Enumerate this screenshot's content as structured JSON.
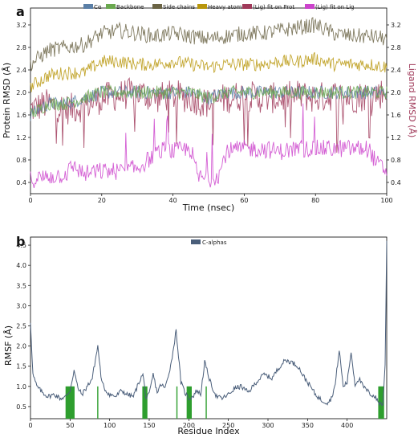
{
  "chart_data": [
    {
      "panel_label": "a",
      "type": "line",
      "xlabel": "Time (nsec)",
      "ylabel": "Protein RMSD (Å)",
      "ylabel_right": "Ligand RMSD (Å)",
      "xlim": [
        0,
        100
      ],
      "ylim": [
        0.2,
        3.5
      ],
      "x_ticks": [
        0,
        20,
        40,
        60,
        80,
        100
      ],
      "y_ticks": [
        0.4,
        0.8,
        1.2,
        1.6,
        2.0,
        2.4,
        2.8,
        3.2
      ],
      "legend_position": "top",
      "series": [
        {
          "name": "Cα",
          "color": "#5b7fa6",
          "axis": "left",
          "x": [
            0,
            5,
            10,
            15,
            20,
            25,
            30,
            35,
            40,
            45,
            50,
            55,
            60,
            65,
            70,
            75,
            80,
            85,
            90,
            95,
            100
          ],
          "y": [
            1.6,
            1.8,
            1.8,
            1.9,
            2.0,
            2.0,
            2.0,
            2.0,
            2.0,
            2.0,
            1.9,
            2.0,
            2.0,
            2.0,
            2.0,
            2.0,
            2.0,
            2.0,
            2.0,
            2.0,
            2.0
          ]
        },
        {
          "name": "Backbone",
          "color": "#6aa84f",
          "axis": "left",
          "x": [
            0,
            5,
            10,
            15,
            20,
            25,
            30,
            35,
            40,
            45,
            50,
            55,
            60,
            65,
            70,
            75,
            80,
            85,
            90,
            95,
            100
          ],
          "y": [
            1.6,
            1.8,
            1.8,
            1.9,
            2.0,
            2.0,
            2.0,
            2.0,
            2.0,
            2.0,
            1.9,
            2.0,
            2.0,
            2.0,
            2.0,
            2.0,
            2.0,
            2.0,
            2.0,
            2.0,
            2.0
          ]
        },
        {
          "name": "Side chains",
          "color": "#6b6445",
          "axis": "left",
          "x": [
            0,
            5,
            10,
            15,
            20,
            25,
            30,
            35,
            40,
            45,
            50,
            55,
            60,
            65,
            70,
            75,
            80,
            85,
            90,
            95,
            100
          ],
          "y": [
            2.5,
            2.75,
            2.8,
            2.85,
            3.05,
            3.1,
            3.05,
            3.0,
            3.05,
            3.0,
            2.95,
            3.0,
            3.05,
            3.05,
            3.1,
            3.15,
            3.2,
            3.05,
            3.0,
            3.0,
            2.95
          ]
        },
        {
          "name": "Heavy atoms",
          "color": "#b8960c",
          "axis": "left",
          "x": [
            0,
            5,
            10,
            15,
            20,
            25,
            30,
            35,
            40,
            45,
            50,
            55,
            60,
            65,
            70,
            75,
            80,
            85,
            90,
            95,
            100
          ],
          "y": [
            2.1,
            2.3,
            2.35,
            2.35,
            2.55,
            2.55,
            2.5,
            2.5,
            2.55,
            2.5,
            2.45,
            2.5,
            2.5,
            2.5,
            2.55,
            2.55,
            2.6,
            2.5,
            2.5,
            2.5,
            2.45
          ]
        },
        {
          "name": "(Lig) fit on Prot",
          "color": "#a03a5a",
          "axis": "right",
          "x": [
            0,
            5,
            10,
            15,
            20,
            25,
            30,
            35,
            40,
            45,
            50,
            55,
            60,
            65,
            70,
            75,
            80,
            85,
            90,
            95,
            100
          ],
          "y": [
            1.7,
            1.8,
            1.7,
            1.75,
            1.9,
            1.95,
            2.0,
            1.9,
            1.95,
            1.9,
            1.8,
            1.9,
            1.95,
            1.9,
            1.9,
            1.95,
            1.9,
            1.95,
            1.9,
            1.95,
            2.0
          ]
        },
        {
          "name": "(Lig) fit on Lig",
          "color": "#cc44cc",
          "axis": "right",
          "x": [
            0,
            5,
            10,
            12,
            15,
            20,
            25,
            30,
            35,
            38,
            40,
            45,
            47,
            50,
            53,
            55,
            60,
            65,
            70,
            75,
            80,
            85,
            90,
            95,
            97,
            100
          ],
          "y": [
            0.45,
            0.5,
            0.55,
            0.7,
            0.55,
            0.6,
            0.6,
            0.65,
            0.9,
            1.0,
            0.95,
            1.0,
            0.5,
            0.45,
            0.55,
            0.95,
            1.0,
            1.0,
            0.95,
            1.0,
            1.0,
            1.0,
            1.0,
            1.0,
            0.75,
            0.6
          ]
        }
      ]
    },
    {
      "panel_label": "b",
      "type": "line",
      "xlabel": "Residue Index",
      "ylabel": "RMSF (Å)",
      "xlim": [
        0,
        450
      ],
      "ylim": [
        0.2,
        4.7
      ],
      "x_ticks": [
        0,
        50,
        100,
        150,
        200,
        250,
        300,
        350,
        400
      ],
      "y_ticks": [
        0.5,
        1.0,
        1.5,
        2.0,
        2.5,
        3.0,
        3.5,
        4.0,
        4.5
      ],
      "legend_position": "top",
      "series": [
        {
          "name": "C-alphas",
          "color": "#4a5e7a",
          "x": [
            0,
            3,
            8,
            15,
            22,
            30,
            38,
            45,
            50,
            55,
            60,
            65,
            70,
            78,
            85,
            90,
            95,
            100,
            108,
            115,
            122,
            130,
            138,
            142,
            146,
            150,
            155,
            160,
            165,
            170,
            178,
            184,
            190,
            195,
            200,
            205,
            210,
            215,
            220,
            228,
            235,
            242,
            250,
            258,
            266,
            275,
            285,
            295,
            305,
            315,
            322,
            330,
            338,
            345,
            352,
            360,
            368,
            375,
            380,
            385,
            390,
            395,
            400,
            405,
            410,
            415,
            420,
            425,
            430,
            435,
            440,
            445,
            448,
            450
          ],
          "y": [
            2.6,
            1.3,
            1.0,
            0.85,
            0.75,
            0.8,
            0.7,
            0.75,
            0.9,
            1.4,
            0.95,
            0.8,
            0.95,
            1.2,
            2.0,
            1.1,
            0.9,
            0.8,
            0.75,
            0.9,
            0.8,
            0.75,
            1.15,
            1.3,
            0.7,
            0.8,
            1.3,
            0.85,
            1.05,
            0.95,
            1.6,
            2.4,
            1.1,
            0.85,
            0.7,
            0.75,
            0.9,
            0.8,
            1.6,
            1.05,
            0.75,
            0.7,
            0.8,
            0.95,
            1.0,
            0.85,
            1.1,
            1.3,
            1.2,
            1.5,
            1.65,
            1.6,
            1.5,
            1.25,
            1.05,
            0.8,
            0.65,
            0.6,
            0.7,
            1.05,
            1.9,
            1.0,
            1.1,
            1.85,
            1.05,
            1.2,
            1.0,
            0.9,
            0.8,
            0.75,
            0.6,
            0.55,
            1.5,
            4.6
          ]
        }
      ],
      "bars": {
        "color": "#2e9e2e",
        "residues": [
          45,
          46,
          47,
          48,
          49,
          50,
          51,
          52,
          53,
          54,
          55,
          85,
          142,
          143,
          144,
          145,
          146,
          147,
          185,
          198,
          199,
          200,
          201,
          202,
          203,
          222,
          440,
          441,
          442,
          443,
          444,
          445,
          446
        ]
      }
    }
  ]
}
